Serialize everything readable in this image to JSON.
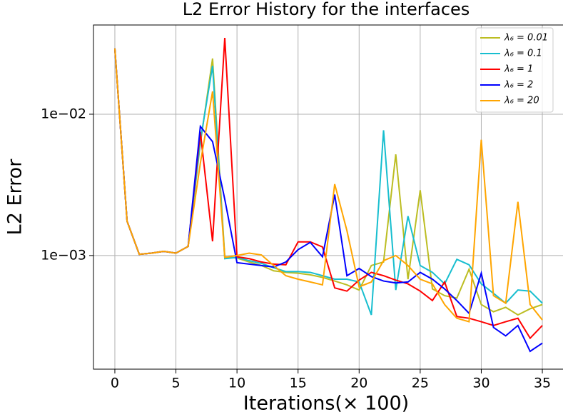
{
  "chart_data": {
    "type": "line",
    "title": "L2 Error History for the interfaces",
    "xlabel": "Iterations(× 100)",
    "ylabel": "L2 Error",
    "yscale": "log",
    "grid": true,
    "legend_loc": "upper right",
    "x": [
      0,
      1,
      2,
      3,
      4,
      5,
      6,
      7,
      8,
      9,
      10,
      11,
      12,
      13,
      14,
      15,
      16,
      17,
      18,
      19,
      20,
      21,
      22,
      23,
      24,
      25,
      26,
      27,
      28,
      29,
      30,
      31,
      32,
      33,
      34,
      35
    ],
    "xlim": [
      -1.75,
      36.75
    ],
    "xticks": [
      0,
      5,
      10,
      15,
      20,
      25,
      30,
      35
    ],
    "ylim": [
      0.000157,
      0.0428
    ],
    "yticks": [
      {
        "value": 0.01,
        "label": "1e−02"
      },
      {
        "value": 0.001,
        "label": "1e−03"
      }
    ],
    "series": [
      {
        "name": "λ₆ = 0.01",
        "color": "#bcbd22",
        "values": [
          0.0292,
          0.00175,
          0.00102,
          0.00104,
          0.00107,
          0.00104,
          0.00116,
          0.0062,
          0.0248,
          0.00098,
          0.00096,
          0.0009,
          0.00085,
          0.00078,
          0.00076,
          0.00075,
          0.00073,
          0.0007,
          0.00066,
          0.00062,
          0.00057,
          0.00085,
          0.0009,
          0.0052,
          0.00068,
          0.0029,
          0.00058,
          0.00052,
          0.0005,
          0.0008,
          0.00045,
          0.0004,
          0.00043,
          0.00038,
          0.00042,
          0.00045
        ]
      },
      {
        "name": "λ₆ = 0.1",
        "color": "#17becf",
        "values": [
          0.0292,
          0.00175,
          0.00102,
          0.00104,
          0.00107,
          0.00104,
          0.00116,
          0.0065,
          0.022,
          0.00095,
          0.00097,
          0.00092,
          0.00088,
          0.00082,
          0.00077,
          0.00077,
          0.00076,
          0.00072,
          0.00068,
          0.00068,
          0.00065,
          0.00038,
          0.0077,
          0.00057,
          0.0019,
          0.00085,
          0.00076,
          0.00063,
          0.00094,
          0.00086,
          0.00063,
          0.00054,
          0.00046,
          0.00057,
          0.00056,
          0.00046
        ]
      },
      {
        "name": "λ₆ = 1",
        "color": "#ff0000",
        "values": [
          0.0292,
          0.00175,
          0.00102,
          0.00104,
          0.00107,
          0.00104,
          0.00116,
          0.0075,
          0.00126,
          0.0347,
          0.00098,
          0.00095,
          0.0009,
          0.00087,
          0.00086,
          0.00125,
          0.00125,
          0.00115,
          0.00059,
          0.00056,
          0.00067,
          0.00076,
          0.00072,
          0.00067,
          0.00063,
          0.00056,
          0.00048,
          0.00065,
          0.00037,
          0.00036,
          0.00034,
          0.00032,
          0.00034,
          0.00036,
          0.00026,
          0.00032
        ]
      },
      {
        "name": "λ₆ = 2",
        "color": "#0000ff",
        "values": [
          0.0292,
          0.00175,
          0.00102,
          0.00104,
          0.00107,
          0.00104,
          0.00116,
          0.0082,
          0.0064,
          0.0025,
          0.00089,
          0.00087,
          0.00085,
          0.00083,
          0.0009,
          0.0011,
          0.00124,
          0.00098,
          0.0027,
          0.00072,
          0.00081,
          0.00071,
          0.00066,
          0.00064,
          0.00065,
          0.00076,
          0.00068,
          0.00058,
          0.00048,
          0.00039,
          0.00075,
          0.00031,
          0.00027,
          0.00032,
          0.00021,
          0.00024
        ]
      },
      {
        "name": "λ₆ = 20",
        "color": "#ffa500",
        "values": [
          0.0292,
          0.00175,
          0.00102,
          0.00104,
          0.00107,
          0.00104,
          0.00116,
          0.0045,
          0.0145,
          0.00097,
          0.001,
          0.00104,
          0.00101,
          0.00085,
          0.00072,
          0.00068,
          0.00065,
          0.00062,
          0.0032,
          0.0015,
          0.0006,
          0.00065,
          0.00092,
          0.001,
          0.00085,
          0.00068,
          0.00063,
          0.00045,
          0.00036,
          0.00034,
          0.0066,
          0.00052,
          0.00046,
          0.0024,
          0.00045,
          0.00035
        ]
      }
    ]
  }
}
